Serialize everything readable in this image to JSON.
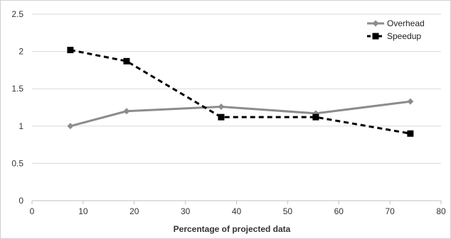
{
  "chart_data": {
    "type": "line",
    "title": "",
    "xlabel": "Percentage of projected data",
    "ylabel": "",
    "xlim": [
      0,
      80
    ],
    "ylim": [
      0,
      2.5
    ],
    "x_ticks": [
      "0",
      "10",
      "20",
      "30",
      "40",
      "50",
      "60",
      "70",
      "80"
    ],
    "y_ticks": [
      "0",
      "0.5",
      "1",
      "1.5",
      "2",
      "2.5"
    ],
    "grid": "horizontal",
    "legend_position": "top-right",
    "series": [
      {
        "name": "Overhead",
        "marker": "diamond",
        "line_style": "solid",
        "color": "#8c8c8c",
        "x": [
          7.5,
          18.5,
          37,
          55.5,
          74
        ],
        "y": [
          1.0,
          1.2,
          1.26,
          1.17,
          1.33
        ]
      },
      {
        "name": "Speedup",
        "marker": "square",
        "line_style": "dashed",
        "color": "#000000",
        "x": [
          7.5,
          18.5,
          37,
          55.5,
          74
        ],
        "y": [
          2.02,
          1.87,
          1.12,
          1.12,
          0.9
        ]
      }
    ]
  }
}
